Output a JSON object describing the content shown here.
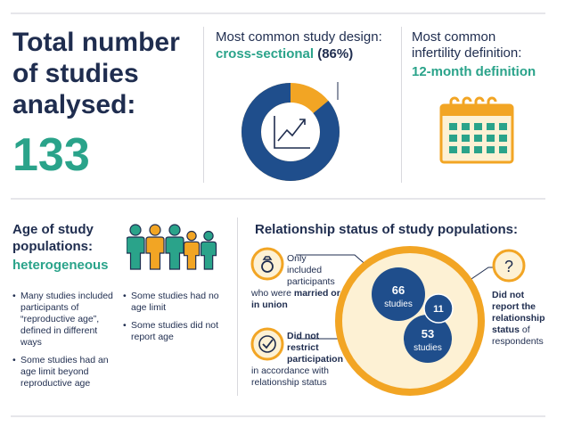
{
  "summary": {
    "title_lines": [
      "Total number",
      "of studies",
      "analysed:"
    ],
    "count": "133"
  },
  "design": {
    "label": "Most common study design:",
    "value": "cross-sectional",
    "percent": "(86%)",
    "fraction": 0.86,
    "icon": "line-chart-icon"
  },
  "infertility": {
    "label_line1": "Most common",
    "label_line2": "infertility definition:",
    "value": "12-month definition",
    "icon": "calendar-icon"
  },
  "age": {
    "title_line1": "Age of study",
    "title_line2": "populations:",
    "value": "heterogeneous",
    "icon": "people-icon",
    "bullets_left": [
      "Many studies included participants of “reproductive age”, defined in different ways",
      "Some studies had an age limit beyond reproductive age"
    ],
    "bullets_right": [
      "Some studies had no age limit",
      "Some studies did not report age"
    ]
  },
  "relationship": {
    "title": "Relationship status of study populations:",
    "married": {
      "text_lines": [
        "Only",
        "included",
        "participants"
      ],
      "bold_lines": [
        "who were married or",
        "in union"
      ],
      "count": "66",
      "unit": "studies",
      "icon": "ring-icon"
    },
    "unrestricted": {
      "bold_lines": [
        "Did not",
        "restrict",
        "participation"
      ],
      "text_lines": [
        "in accordance with",
        "relationship status"
      ],
      "count": "53",
      "unit": "studies",
      "icon": "checkmark-icon"
    },
    "unreported": {
      "bold_lines": [
        "Did not",
        "report the",
        "relationship",
        "status"
      ],
      "tail": "of",
      "last_line": "respondents",
      "count": "11",
      "icon": "question-icon"
    }
  },
  "colors": {
    "navy": "#1f4e8c",
    "teal": "#2aa38a",
    "orange": "#f2a524",
    "cream": "#fdf1d4",
    "dark_text": "#1f2d4f"
  }
}
